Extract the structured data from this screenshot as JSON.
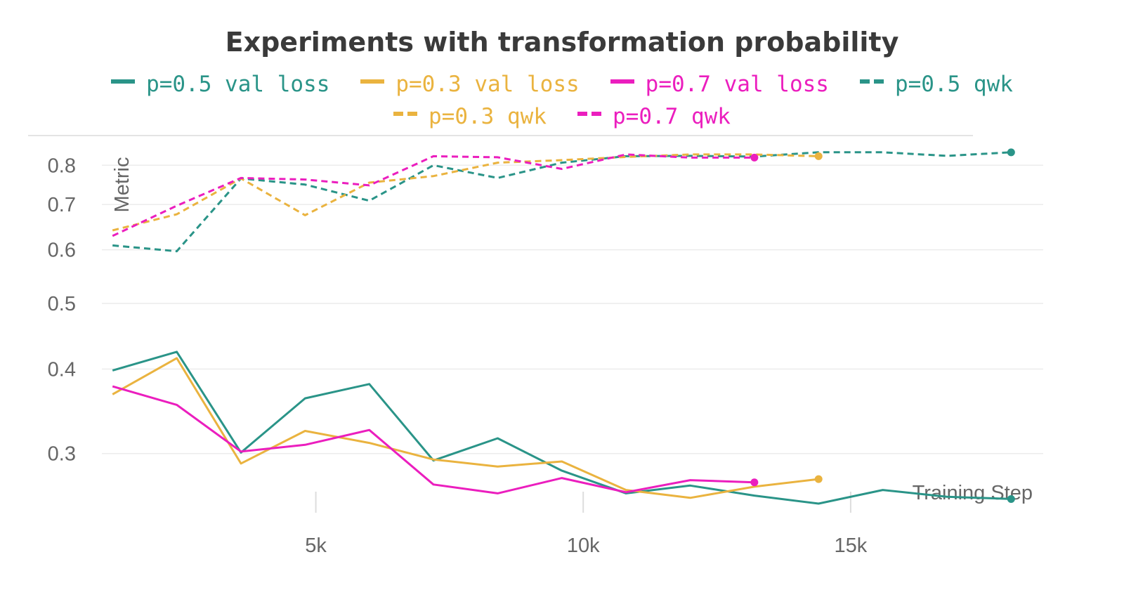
{
  "chart_data": {
    "type": "line",
    "title": "Experiments with transformation probability",
    "xlabel": "Training Step",
    "ylabel": "Metric",
    "y_scale": "log",
    "ylim": [
      0.25,
      0.86
    ],
    "xlim": [
      1000,
      18600
    ],
    "y_ticks": [
      0.3,
      0.4,
      0.5,
      0.6,
      0.7,
      0.8
    ],
    "y_tick_labels": [
      "0.3",
      "0.4",
      "0.5",
      "0.6",
      "0.7",
      "0.8"
    ],
    "x_ticks": [
      5000,
      10000,
      15000
    ],
    "x_tick_labels": [
      "5k",
      "10k",
      "15k"
    ],
    "grid": true,
    "legend_position": "top-center",
    "series": [
      {
        "name": "p=0.5 val loss",
        "color": "#2a9488",
        "style": "solid",
        "x": [
          1200,
          2400,
          3600,
          4800,
          6000,
          7200,
          8400,
          9600,
          10800,
          12000,
          13200,
          14400,
          15600,
          16800,
          18000
        ],
        "y": [
          0.398,
          0.424,
          0.301,
          0.362,
          0.38,
          0.293,
          0.316,
          0.283,
          0.262,
          0.269,
          0.26,
          0.253,
          0.265,
          0.259,
          0.257
        ]
      },
      {
        "name": "p=0.3 val loss",
        "color": "#eab33f",
        "style": "solid",
        "x": [
          1200,
          2400,
          3600,
          4800,
          6000,
          7200,
          8400,
          9600,
          10800,
          12000,
          13200,
          14400
        ],
        "y": [
          0.367,
          0.415,
          0.29,
          0.324,
          0.311,
          0.294,
          0.287,
          0.292,
          0.265,
          0.258,
          0.268,
          0.275
        ]
      },
      {
        "name": "p=0.7 val loss",
        "color": "#eb1ebe",
        "style": "solid",
        "x": [
          1200,
          2400,
          3600,
          4800,
          6000,
          7200,
          8400,
          9600,
          10800,
          12000,
          13200
        ],
        "y": [
          0.377,
          0.354,
          0.302,
          0.309,
          0.325,
          0.27,
          0.262,
          0.276,
          0.263,
          0.274,
          0.272
        ]
      },
      {
        "name": "p=0.5 qwk",
        "color": "#2a9488",
        "style": "dashed",
        "x": [
          1200,
          2400,
          3600,
          4800,
          6000,
          7200,
          8400,
          9600,
          10800,
          12000,
          13200,
          14400,
          15600,
          16800,
          18000
        ],
        "y": [
          0.609,
          0.597,
          0.765,
          0.749,
          0.709,
          0.8,
          0.766,
          0.807,
          0.825,
          0.826,
          0.824,
          0.836,
          0.836,
          0.826,
          0.836
        ]
      },
      {
        "name": "p=0.3 qwk",
        "color": "#eab33f",
        "style": "dashed",
        "x": [
          1200,
          2400,
          3600,
          4800,
          6000,
          7200,
          8400,
          9600,
          10800,
          12000,
          13200,
          14400
        ],
        "y": [
          0.641,
          0.677,
          0.765,
          0.675,
          0.754,
          0.771,
          0.807,
          0.814,
          0.823,
          0.83,
          0.83,
          0.825
        ]
      },
      {
        "name": "p=0.7 qwk",
        "color": "#eb1ebe",
        "style": "dashed",
        "x": [
          1200,
          2400,
          3600,
          4800,
          6000,
          7200,
          8400,
          9600,
          10800,
          12000,
          13200
        ],
        "y": [
          0.629,
          0.697,
          0.766,
          0.762,
          0.747,
          0.825,
          0.822,
          0.79,
          0.83,
          0.821,
          0.821
        ]
      }
    ]
  }
}
